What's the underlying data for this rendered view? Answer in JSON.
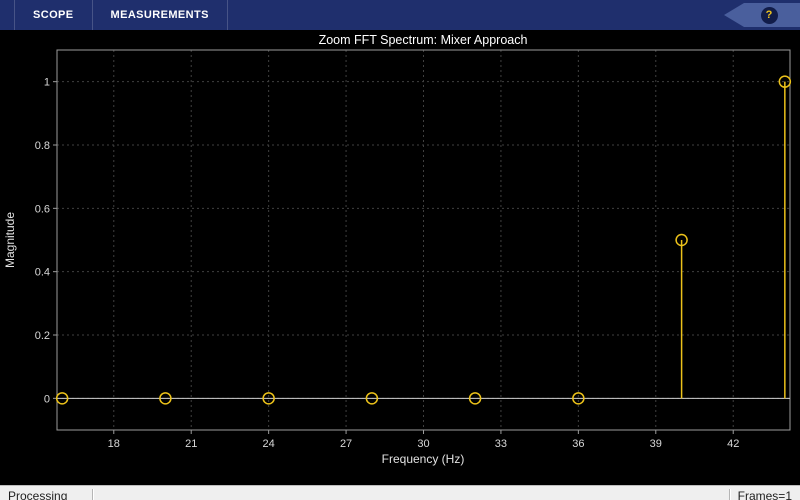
{
  "toolstrip": {
    "tabs": [
      {
        "label": "SCOPE"
      },
      {
        "label": "MEASUREMENTS"
      }
    ],
    "help_label": "?"
  },
  "chart_data": {
    "type": "stem",
    "title": "Zoom FFT Spectrum: Mixer Approach",
    "xlabel": "Frequency (Hz)",
    "ylabel": "Magnitude",
    "x": [
      16,
      20,
      24,
      28,
      32,
      36,
      40,
      44
    ],
    "y": [
      0,
      0,
      0,
      0,
      0,
      0,
      0.5,
      1
    ],
    "xticks": [
      18,
      21,
      24,
      27,
      30,
      33,
      36,
      39,
      42
    ],
    "yticks": [
      0,
      0.2,
      0.4,
      0.6,
      0.8,
      1
    ],
    "xlim": [
      15.8,
      44.2
    ],
    "ylim": [
      -0.1,
      1.1
    ],
    "grid": true,
    "legend": false,
    "marker": "circle",
    "baseline": 0
  },
  "statusbar": {
    "left": "Processing",
    "right": "Frames=1"
  },
  "colors": {
    "toolstrip_bg": "#1f2f6d",
    "tab_text": "#ffffff",
    "help_badge_bg": "#4a5f9d",
    "help_circle_bg": "#111c49",
    "help_mark": "#f0c41c",
    "plot_bg": "#000000",
    "title_text": "#ffffff",
    "axis_text": "#e2e2e2",
    "tick_text": "#d8d8d8",
    "grid_line": "#404040",
    "axis_line": "#9c9c9c",
    "baseline_line": "#d0d0d0",
    "stem_color": "#ecc21a",
    "status_bg": "#efefef",
    "status_text": "#1f1f1f",
    "status_border": "#bdbdbd"
  }
}
